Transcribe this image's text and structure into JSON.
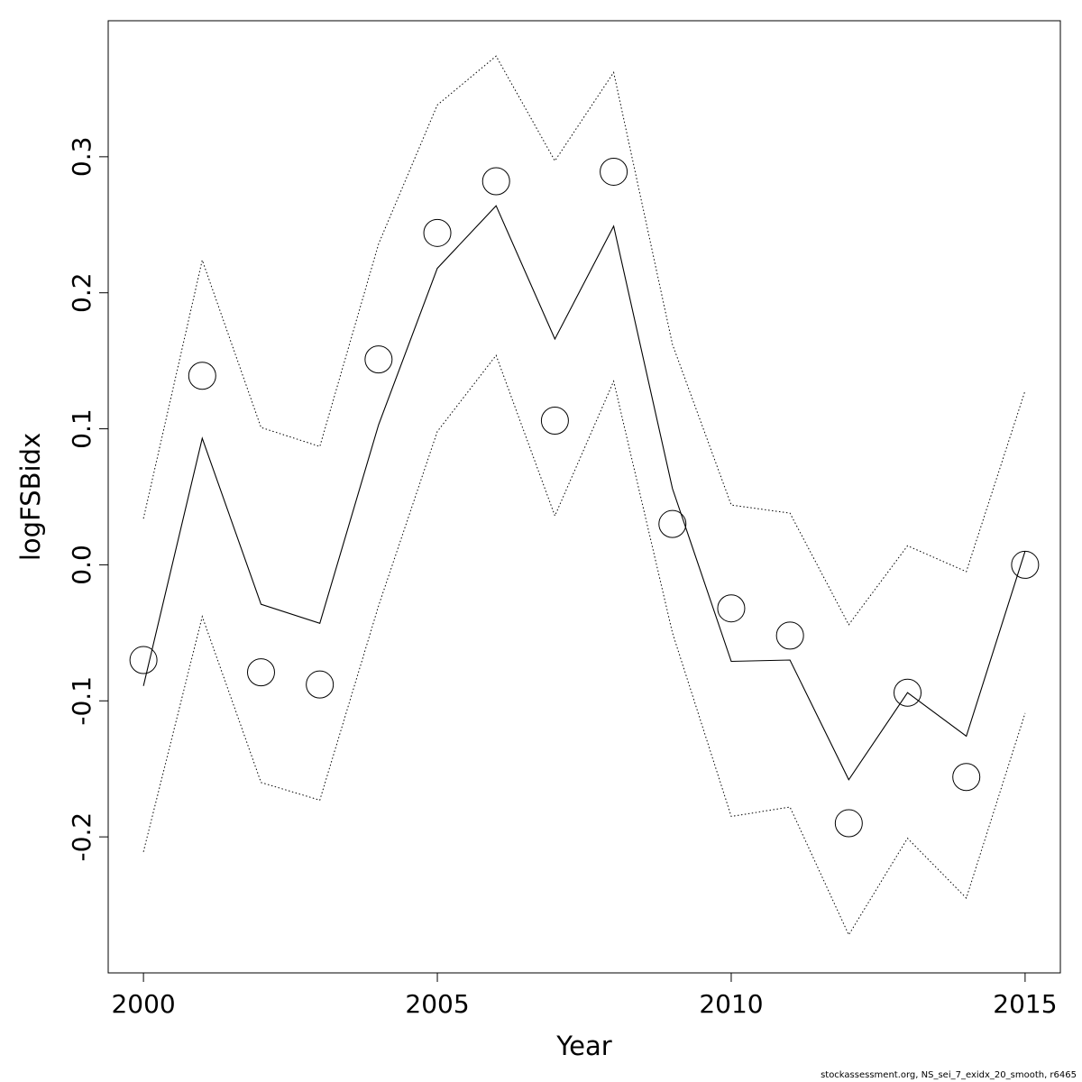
{
  "chart_data": {
    "type": "line",
    "xlabel": "Year",
    "ylabel": "logFSBidx",
    "xlim": [
      1999.4,
      2015.6
    ],
    "ylim": [
      -0.3,
      0.4
    ],
    "x_ticks": [
      2000,
      2005,
      2010,
      2015
    ],
    "y_ticks": [
      -0.2,
      -0.1,
      0.0,
      0.1,
      0.2,
      0.3
    ],
    "y_tick_labels": [
      "-0.2",
      "-0.1",
      "0.0",
      "0.1",
      "0.2",
      "0.3"
    ],
    "years": [
      2000,
      2001,
      2002,
      2003,
      2004,
      2005,
      2006,
      2007,
      2008,
      2009,
      2010,
      2011,
      2012,
      2013,
      2014,
      2015
    ],
    "series": [
      {
        "style": "points",
        "values": [
          -0.07,
          0.139,
          -0.079,
          -0.088,
          0.151,
          0.244,
          0.282,
          0.106,
          0.289,
          0.03,
          -0.032,
          -0.052,
          -0.19,
          -0.094,
          -0.156,
          0.0
        ]
      },
      {
        "style": "solid",
        "values": [
          -0.089,
          0.093,
          -0.029,
          -0.043,
          0.103,
          0.218,
          0.264,
          0.166,
          0.249,
          0.056,
          -0.071,
          -0.07,
          -0.158,
          -0.094,
          -0.126,
          0.01
        ]
      },
      {
        "style": "dotted",
        "values": [
          0.034,
          0.224,
          0.101,
          0.087,
          0.236,
          0.338,
          0.374,
          0.297,
          0.362,
          0.162,
          0.044,
          0.038,
          -0.044,
          0.014,
          -0.005,
          0.128
        ]
      },
      {
        "style": "dotted",
        "values": [
          -0.211,
          -0.038,
          -0.16,
          -0.173,
          -0.03,
          0.098,
          0.154,
          0.036,
          0.135,
          -0.05,
          -0.185,
          -0.178,
          -0.272,
          -0.201,
          -0.245,
          -0.109
        ]
      }
    ],
    "grid": false,
    "legend": "none"
  },
  "footer": "stockassessment.org, NS_sei_7_exidx_20_smooth, r6465"
}
